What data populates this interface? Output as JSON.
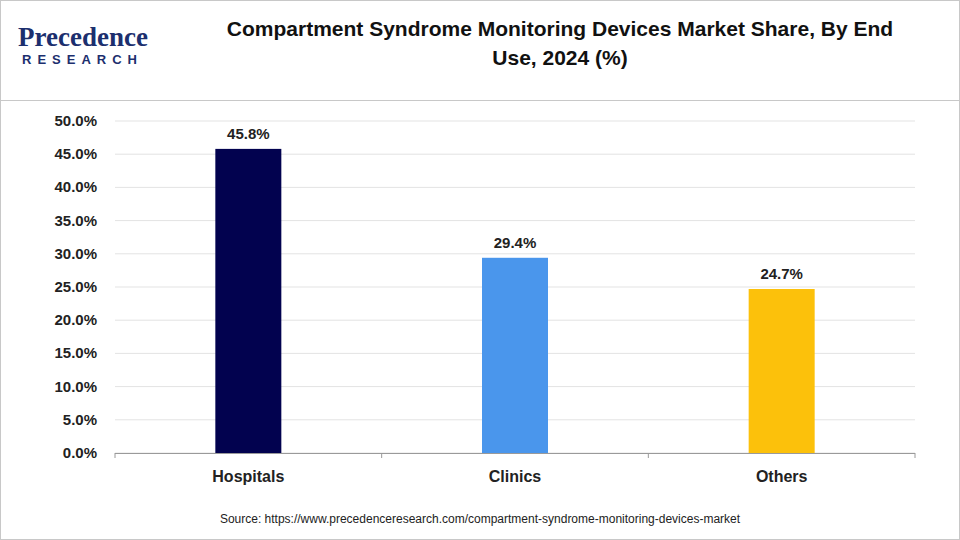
{
  "chart_data": {
    "type": "bar",
    "title": "Compartment Syndrome Monitoring Devices Market Share, By End Use, 2024 (%)",
    "logo_text": "Precedence",
    "logo_subtext": "RESEARCH",
    "source": "Source: https://www.precedenceresearch.com/compartment-syndrome-monitoring-devices-market",
    "categories": [
      "Hospitals",
      "Clinics",
      "Others"
    ],
    "values": [
      45.8,
      29.4,
      24.7
    ],
    "value_labels": [
      "45.8%",
      "29.4%",
      "24.7%"
    ],
    "colors": [
      "#02024f",
      "#4a96ec",
      "#fcc10b"
    ],
    "ylim": [
      0,
      50
    ],
    "yticks": [
      {
        "value": 0,
        "label": "0.0%"
      },
      {
        "value": 5,
        "label": "5.0%"
      },
      {
        "value": 10,
        "label": "10.0%"
      },
      {
        "value": 15,
        "label": "15.0%"
      },
      {
        "value": 20,
        "label": "20.0%"
      },
      {
        "value": 25,
        "label": "25.0%"
      },
      {
        "value": 30,
        "label": "30.0%"
      },
      {
        "value": 35,
        "label": "35.0%"
      },
      {
        "value": 40,
        "label": "40.0%"
      },
      {
        "value": 45,
        "label": "45.0%"
      },
      {
        "value": 50,
        "label": "50.0%"
      }
    ],
    "grid": true,
    "data_labels": true
  }
}
